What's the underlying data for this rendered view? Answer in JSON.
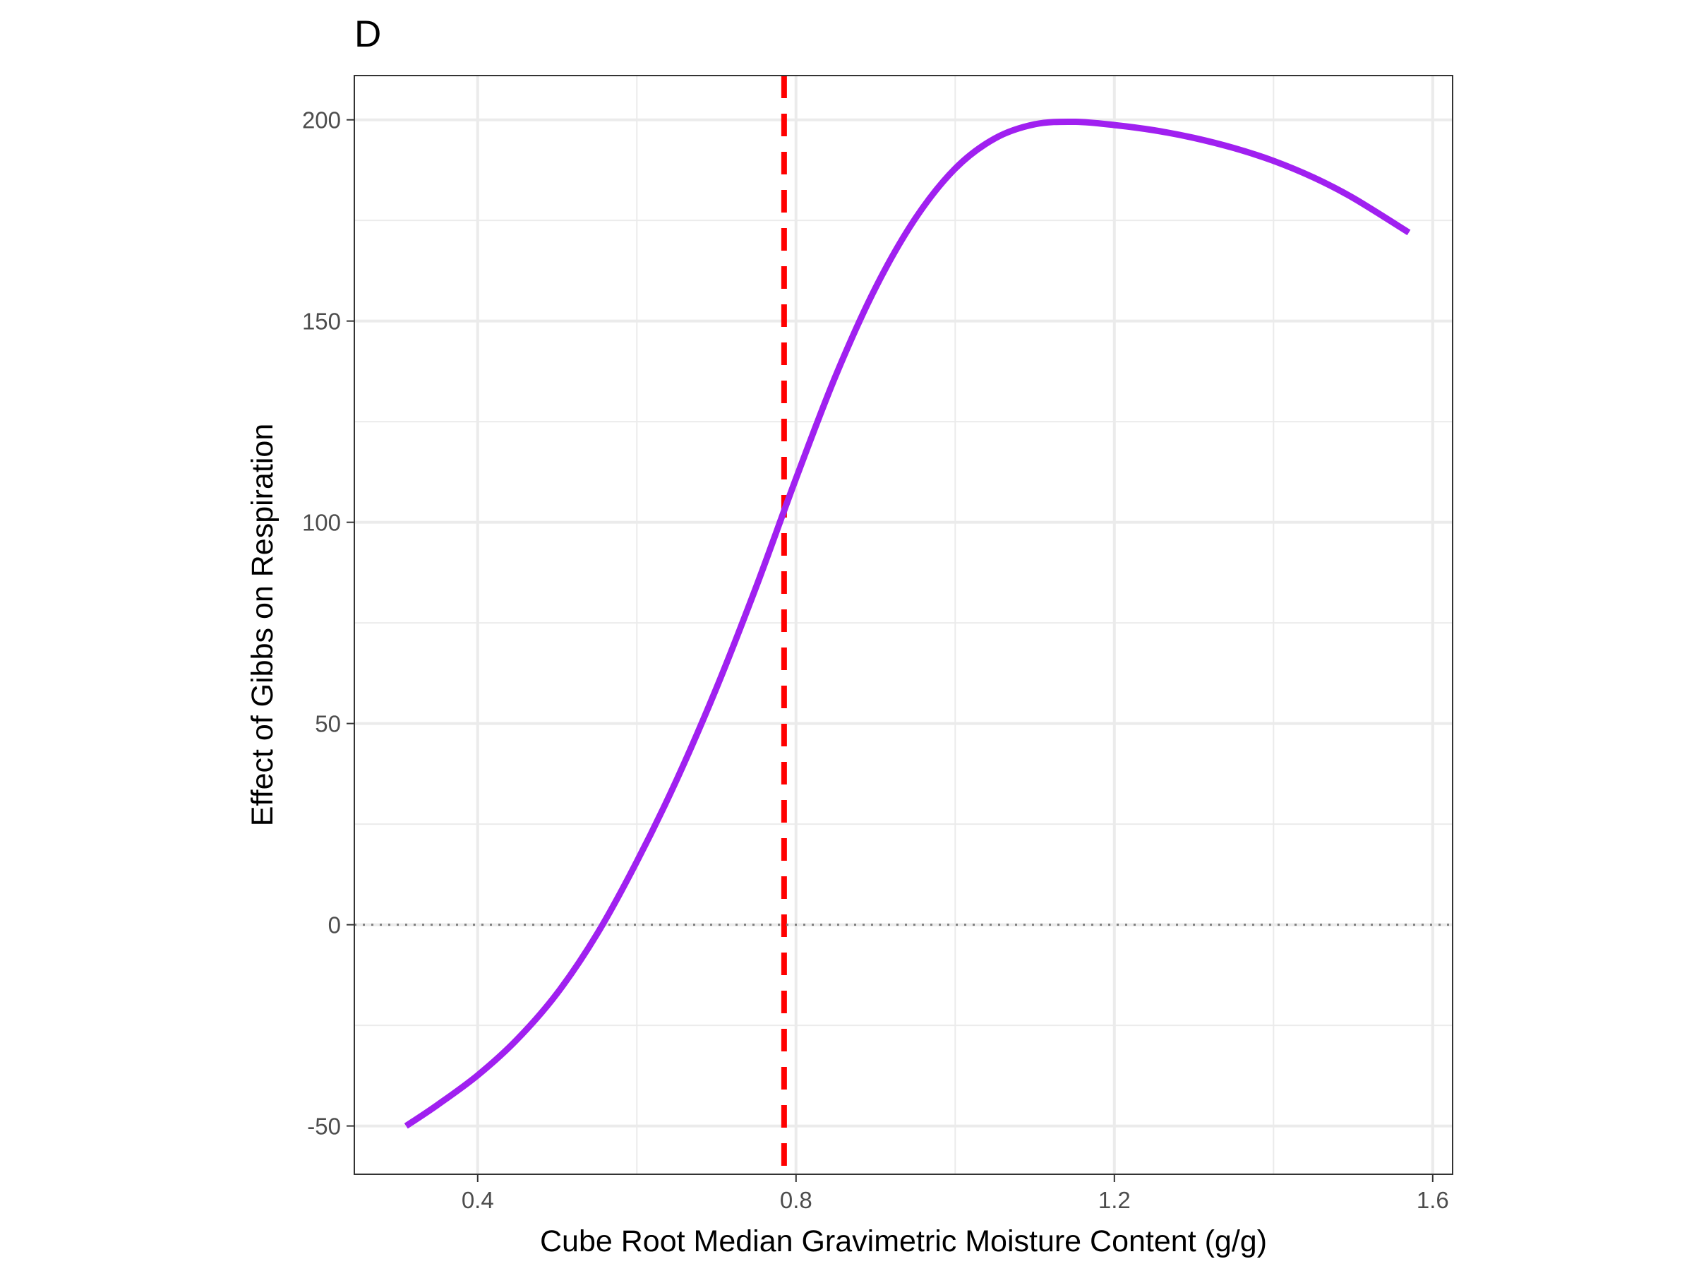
{
  "chart_data": {
    "type": "line",
    "panel_label": "D",
    "title": "",
    "xlabel": "Cube Root Median Gravimetric Moisture Content (g/g)",
    "ylabel": "Effect of Gibbs on Respiration",
    "xlim": [
      0.245,
      1.625
    ],
    "ylim": [
      -62,
      211
    ],
    "x_ticks": [
      0.4,
      0.8,
      1.2,
      1.6
    ],
    "x_tick_labels": [
      "0.4",
      "0.8",
      "1.2",
      "1.6"
    ],
    "y_ticks": [
      -50,
      0,
      50,
      100,
      150,
      200
    ],
    "y_tick_labels": [
      "-50",
      "0",
      "50",
      "100",
      "150",
      "200"
    ],
    "grid": true,
    "legend": "none",
    "series": [
      {
        "color": "#A020F0",
        "x": [
          0.31,
          0.35,
          0.4,
          0.45,
          0.5,
          0.55,
          0.6,
          0.65,
          0.7,
          0.75,
          0.8,
          0.85,
          0.9,
          0.95,
          1.0,
          1.05,
          1.1,
          1.15,
          1.2,
          1.25,
          1.3,
          1.35,
          1.4,
          1.45,
          1.5,
          1.57
        ],
        "y": [
          -50,
          -44.7,
          -37.4,
          -28.4,
          -17.0,
          -2.3,
          15.7,
          36.0,
          58.8,
          84.0,
          110.9,
          136.5,
          158.3,
          175.5,
          187.9,
          195.4,
          198.9,
          199.5,
          198.7,
          197.4,
          195.5,
          193.0,
          189.8,
          185.7,
          180.6,
          172.0
        ]
      }
    ],
    "reference_lines": [
      {
        "orientation": "vertical",
        "x": 0.785,
        "style": "dashed",
        "color": "#FF0000"
      },
      {
        "orientation": "horizontal",
        "y": 0,
        "style": "dotted",
        "color": "#7f7f7f"
      }
    ]
  }
}
